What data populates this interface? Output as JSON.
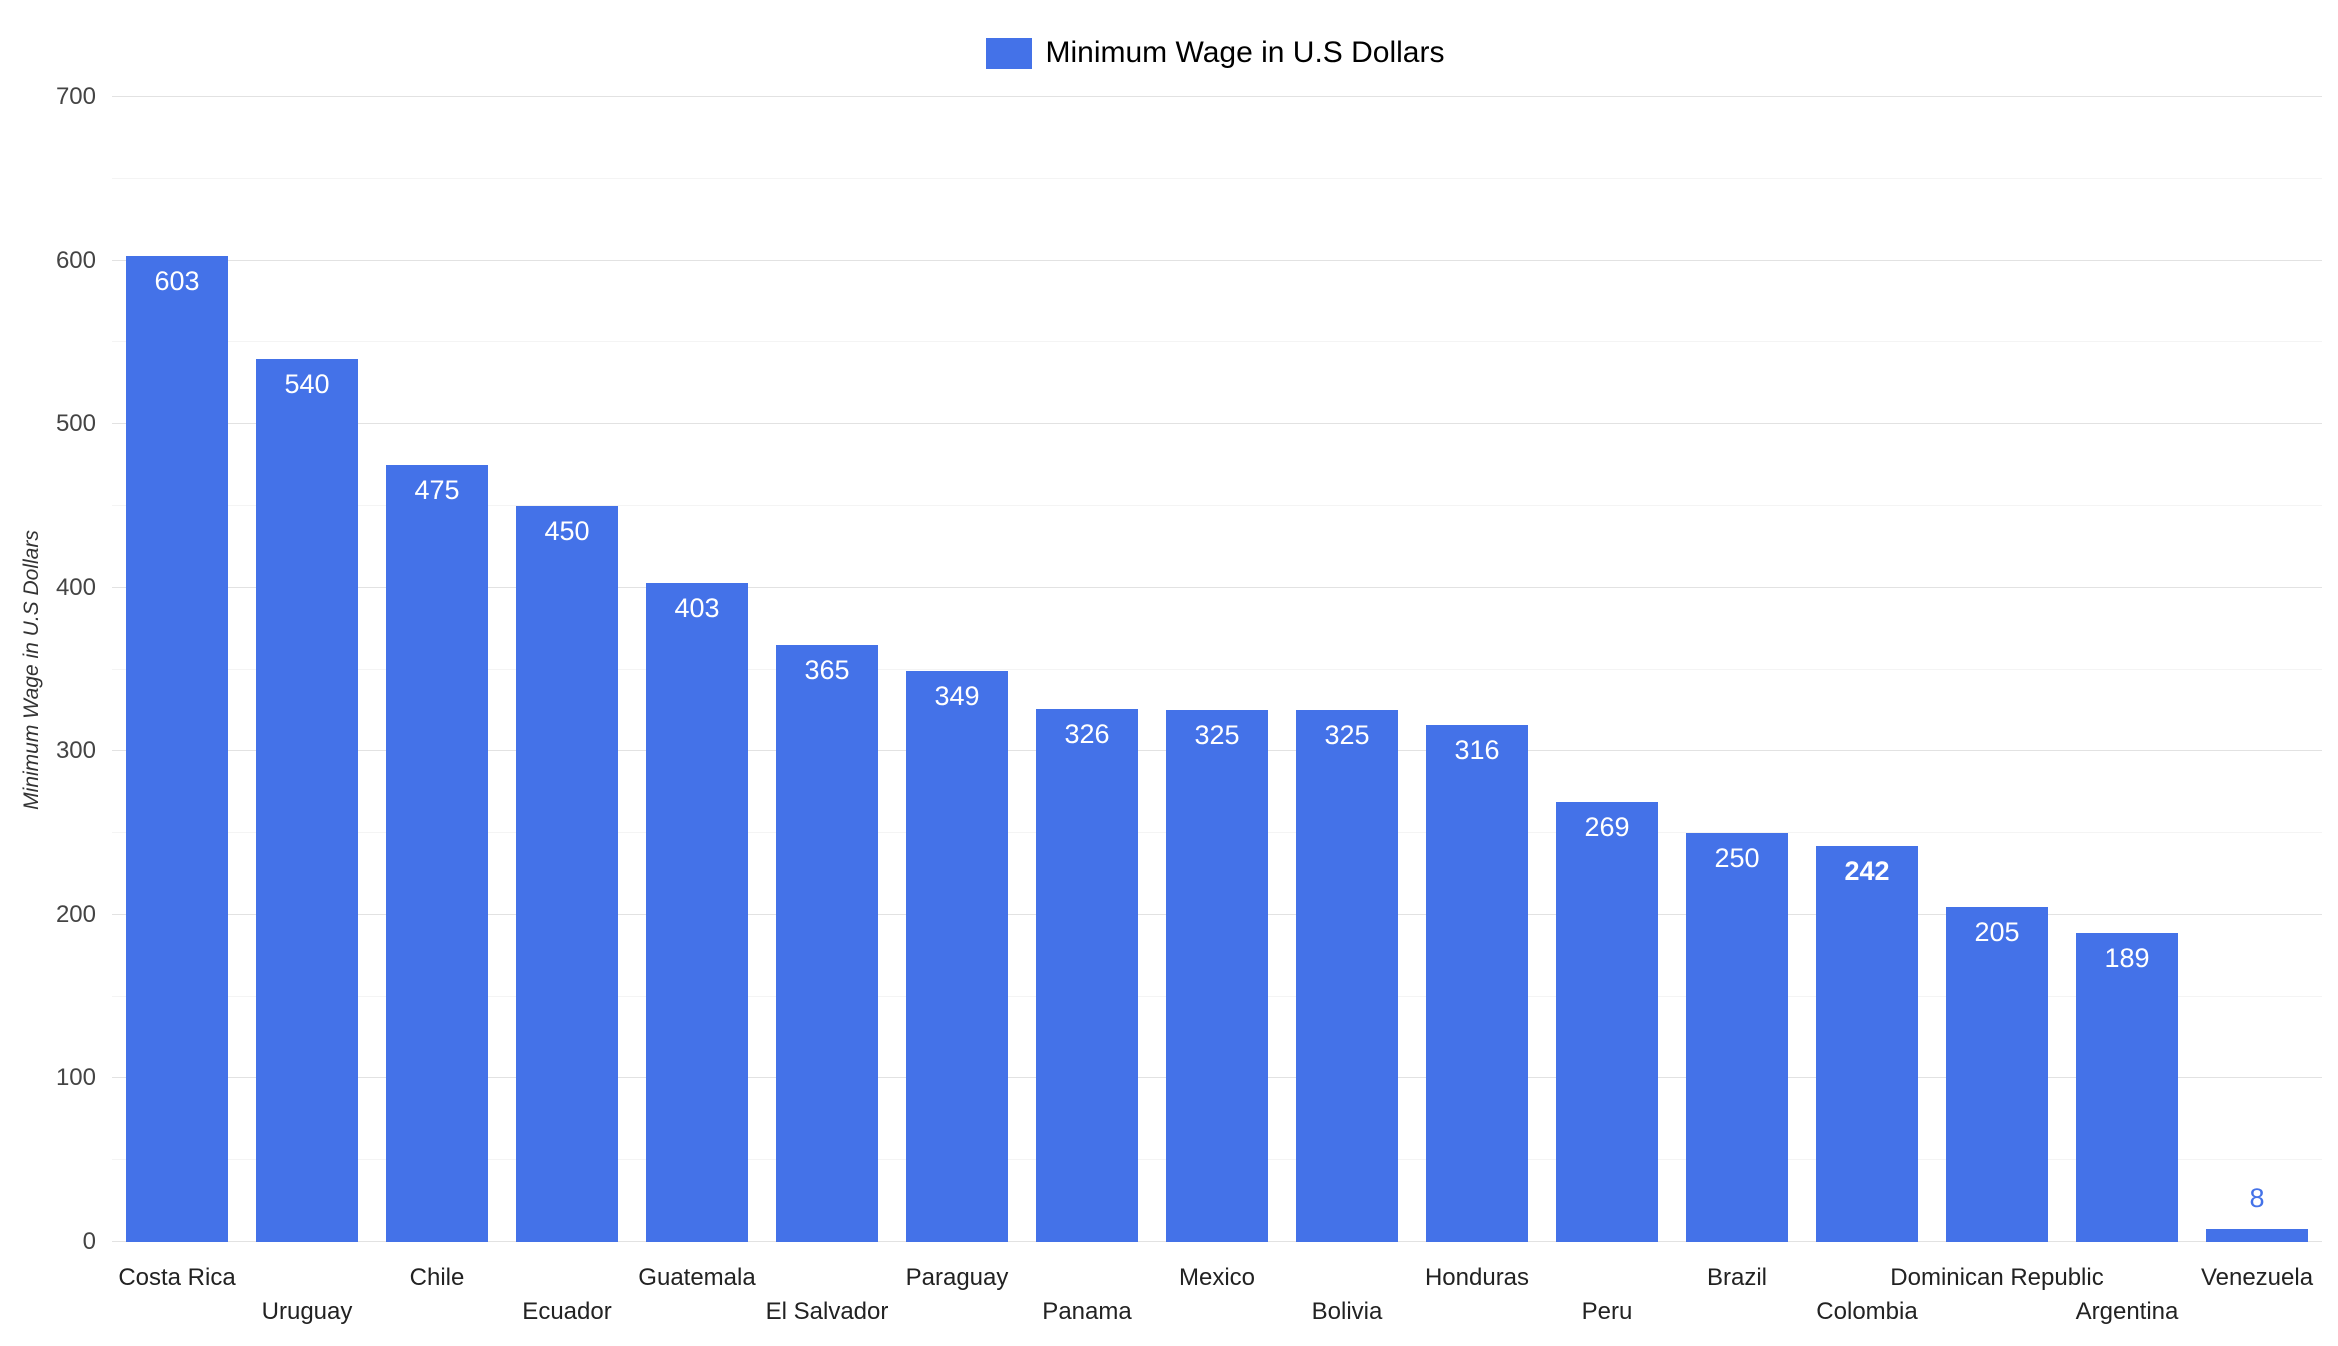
{
  "chart_data": {
    "type": "bar",
    "title": "Minimum Wage in U.S Dollars",
    "xlabel": "",
    "ylabel": "Minimum Wage in U.S Dollars",
    "ylim": [
      0,
      700
    ],
    "y_ticks": [
      0,
      100,
      200,
      300,
      400,
      500,
      600,
      700
    ],
    "y_minor_step": 50,
    "y_major_step": 100,
    "grid": true,
    "legend_position": "top",
    "bar_color": "#4472e8",
    "label_color_inside": "#ffffff",
    "label_color_outside": "#4472e8",
    "categories": [
      "Costa Rica",
      "Uruguay",
      "Chile",
      "Ecuador",
      "Guatemala",
      "El Salvador",
      "Paraguay",
      "Panama",
      "Mexico",
      "Bolivia",
      "Honduras",
      "Peru",
      "Brazil",
      "Colombia",
      "Dominican Republic",
      "Argentina",
      "Venezuela"
    ],
    "values": [
      603,
      540,
      475,
      450,
      403,
      365,
      349,
      326,
      325,
      325,
      316,
      269,
      250,
      242,
      205,
      189,
      8
    ],
    "emphasized_categories": [
      "Colombia"
    ]
  }
}
